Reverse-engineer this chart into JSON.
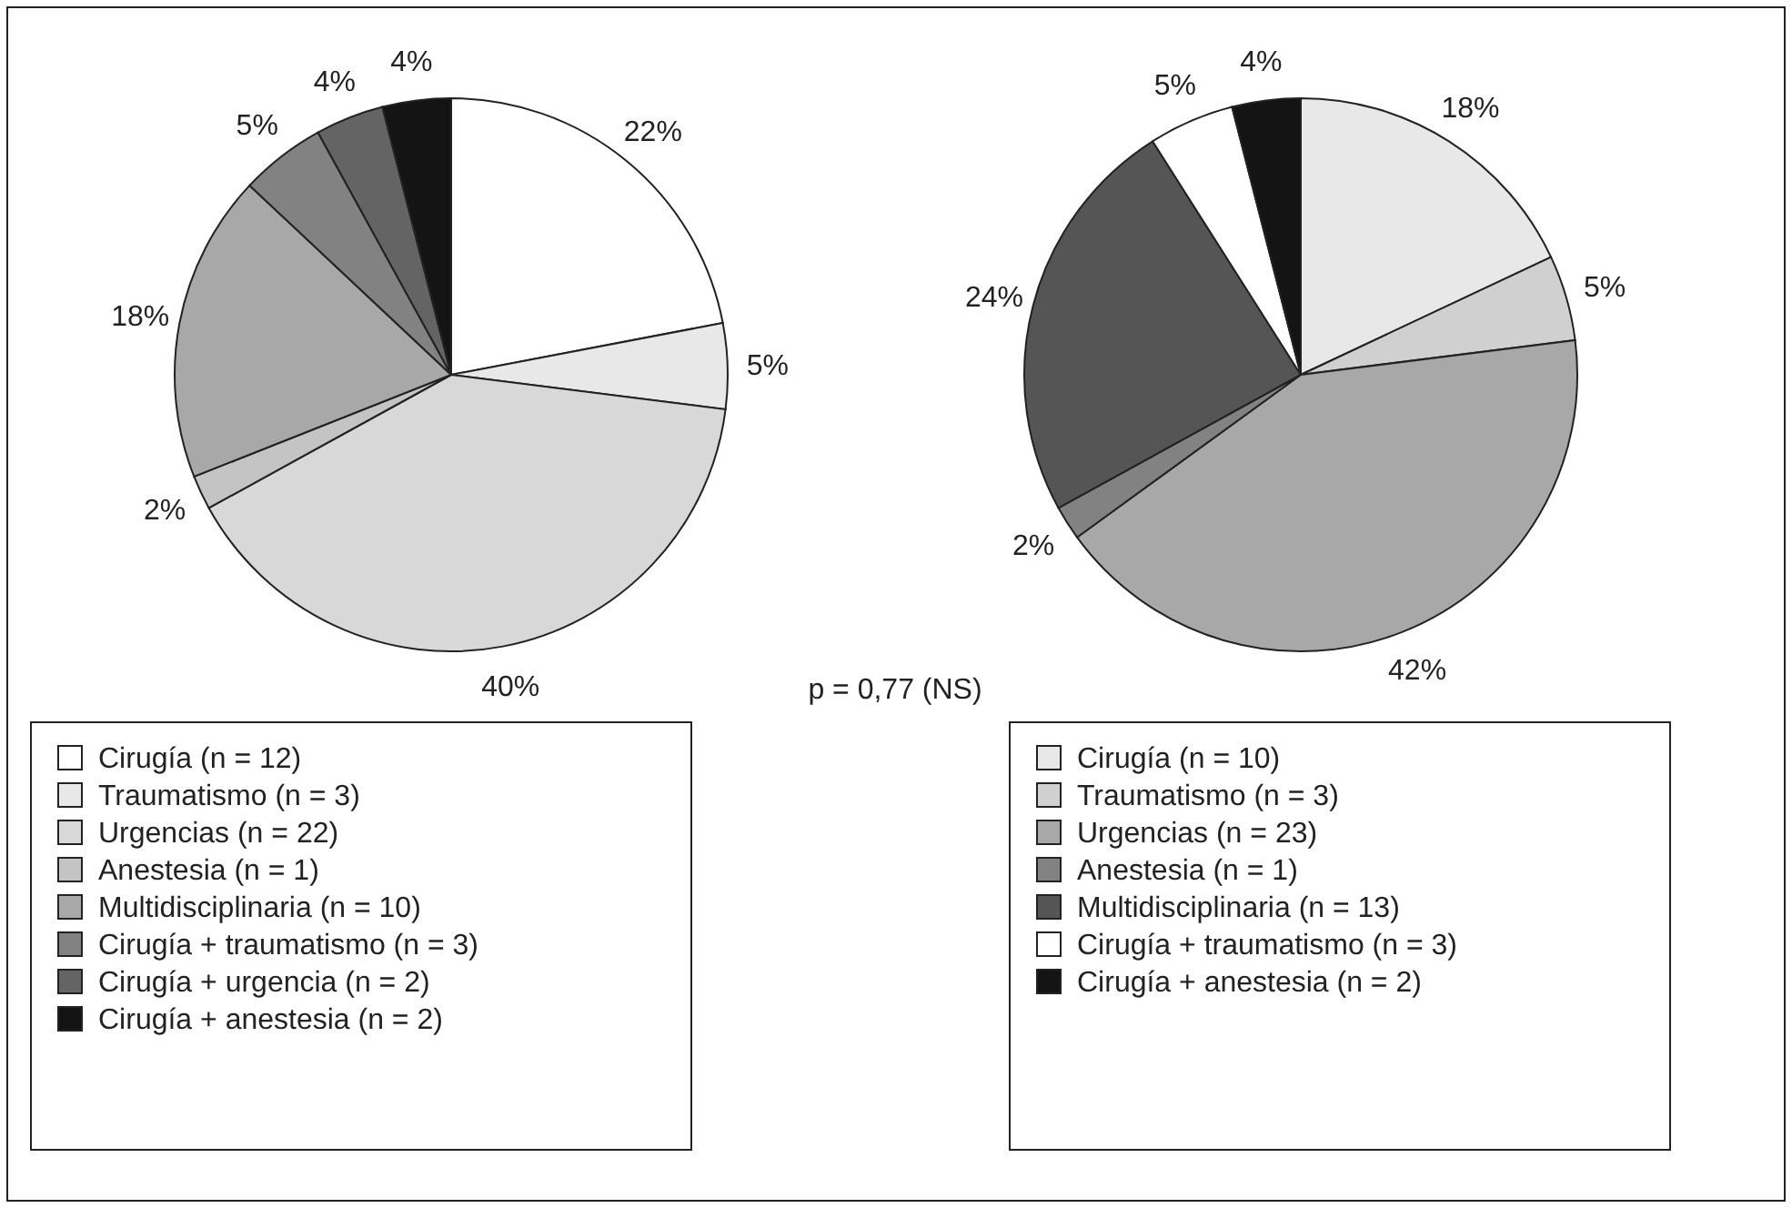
{
  "chart_data": [
    {
      "type": "pie",
      "categories": [
        "Cirugía (n = 12)",
        "Traumatismo (n = 3)",
        "Urgencias (n = 22)",
        "Anestesia (n = 1)",
        "Multidisciplinaria (n = 10)",
        "Cirugía + traumatismo (n = 3)",
        "Cirugía + urgencia (n = 2)",
        "Cirugía + anestesia (n = 2)"
      ],
      "values": [
        22,
        5,
        40,
        2,
        18,
        5,
        4,
        4
      ],
      "value_labels": [
        "22%",
        "5%",
        "40%",
        "2%",
        "18%",
        "5%",
        "4%",
        "4%"
      ],
      "colors": [
        "#ffffff",
        "#e8e8e8",
        "#d8d8d8",
        "#c4c4c4",
        "#a8a8a8",
        "#828282",
        "#646464",
        "#141414"
      ],
      "legend": "bottom",
      "annotations": [
        "p = 0,77 (NS)"
      ]
    },
    {
      "type": "pie",
      "categories": [
        "Cirugía (n = 10)",
        "Traumatismo (n = 3)",
        "Urgencias (n = 23)",
        "Anestesia (n = 1)",
        "Multidisciplinaria (n = 13)",
        "Cirugía + traumatismo (n = 3)",
        "Cirugía + anestesia (n = 2)"
      ],
      "values": [
        18,
        5,
        42,
        2,
        24,
        5,
        4
      ],
      "value_labels": [
        "18%",
        "5%",
        "42%",
        "2%",
        "24%",
        "5%",
        "4%"
      ],
      "colors": [
        "#e8e8e8",
        "#d0d0d0",
        "#a8a8a8",
        "#828282",
        "#555555",
        "#ffffff",
        "#141414"
      ],
      "legend": "bottom"
    }
  ]
}
